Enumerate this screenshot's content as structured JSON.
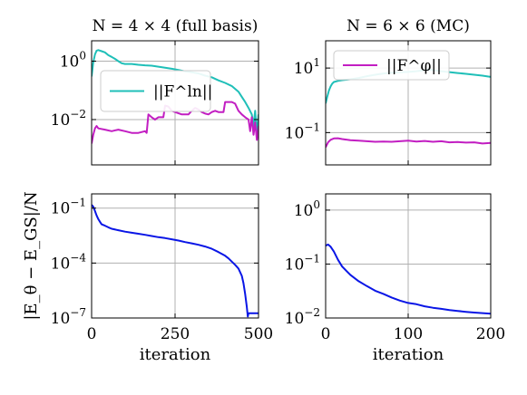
{
  "colors": {
    "cyan": "#1fbfb8",
    "magenta": "#c21ec2",
    "blue": "#0a16e6"
  },
  "chart_data": [
    {
      "panel": "top-left",
      "type": "line",
      "title": "N = 4 × 4 (full basis)",
      "xlim": [
        0,
        500
      ],
      "ylim": [
        0.00028,
        5.0
      ],
      "yscale": "log",
      "yticks": [
        {
          "value": 1,
          "label": "10^0"
        },
        {
          "value": 0.01,
          "label": "10^-2"
        }
      ],
      "xticks": [
        0,
        250,
        500
      ],
      "legend": {
        "placement": "upper-left",
        "entries": [
          "||F^ln||"
        ]
      },
      "series": [
        {
          "name": "||F^ln||",
          "color": "#1fbfb8",
          "points": [
            [
              0,
              0.3
            ],
            [
              5,
              0.9
            ],
            [
              10,
              1.7
            ],
            [
              15,
              2.3
            ],
            [
              20,
              2.4
            ],
            [
              30,
              2.2
            ],
            [
              40,
              2.0
            ],
            [
              50,
              1.6
            ],
            [
              60,
              1.4
            ],
            [
              70,
              1.2
            ],
            [
              80,
              1.0
            ],
            [
              90,
              0.85
            ],
            [
              100,
              0.8
            ],
            [
              120,
              0.8
            ],
            [
              140,
              0.75
            ],
            [
              160,
              0.72
            ],
            [
              180,
              0.7
            ],
            [
              200,
              0.65
            ],
            [
              220,
              0.6
            ],
            [
              240,
              0.55
            ],
            [
              260,
              0.5
            ],
            [
              280,
              0.45
            ],
            [
              300,
              0.42
            ],
            [
              320,
              0.38
            ],
            [
              340,
              0.32
            ],
            [
              360,
              0.28
            ],
            [
              380,
              0.22
            ],
            [
              400,
              0.18
            ],
            [
              420,
              0.14
            ],
            [
              440,
              0.09
            ],
            [
              450,
              0.06
            ],
            [
              460,
              0.04
            ],
            [
              470,
              0.025
            ],
            [
              480,
              0.015
            ],
            [
              485,
              0.006
            ],
            [
              490,
              0.02
            ],
            [
              495,
              0.003
            ],
            [
              500,
              0.015
            ]
          ]
        },
        {
          "name": "",
          "color": "#c21ec2",
          "points": [
            [
              0,
              0.0015
            ],
            [
              5,
              0.003
            ],
            [
              10,
              0.005
            ],
            [
              15,
              0.006
            ],
            [
              20,
              0.005
            ],
            [
              40,
              0.0045
            ],
            [
              60,
              0.004
            ],
            [
              80,
              0.0045
            ],
            [
              100,
              0.004
            ],
            [
              120,
              0.0035
            ],
            [
              140,
              0.0035
            ],
            [
              160,
              0.004
            ],
            [
              165,
              0.0035
            ],
            [
              170,
              0.015
            ],
            [
              180,
              0.012
            ],
            [
              190,
              0.01
            ],
            [
              200,
              0.012
            ],
            [
              215,
              0.012
            ],
            [
              220,
              0.03
            ],
            [
              230,
              0.028
            ],
            [
              240,
              0.02
            ],
            [
              250,
              0.018
            ],
            [
              270,
              0.015
            ],
            [
              290,
              0.015
            ],
            [
              300,
              0.02
            ],
            [
              310,
              0.025
            ],
            [
              320,
              0.022
            ],
            [
              330,
              0.018
            ],
            [
              340,
              0.016
            ],
            [
              350,
              0.015
            ],
            [
              360,
              0.018
            ],
            [
              370,
              0.02
            ],
            [
              380,
              0.018
            ],
            [
              395,
              0.018
            ],
            [
              400,
              0.04
            ],
            [
              420,
              0.04
            ],
            [
              430,
              0.035
            ],
            [
              440,
              0.02
            ],
            [
              450,
              0.015
            ],
            [
              460,
              0.012
            ],
            [
              470,
              0.01
            ],
            [
              475,
              0.004
            ],
            [
              480,
              0.012
            ],
            [
              485,
              0.003
            ],
            [
              490,
              0.008
            ],
            [
              495,
              0.002
            ],
            [
              500,
              0.006
            ]
          ]
        }
      ]
    },
    {
      "panel": "top-right",
      "type": "line",
      "title": "N = 6 × 6 (MC)",
      "xlim": [
        0,
        200
      ],
      "ylim": [
        0.01,
        70
      ],
      "yscale": "log",
      "yticks": [
        {
          "value": 10,
          "label": "10^1"
        },
        {
          "value": 0.1,
          "label": "10^-1"
        }
      ],
      "xticks": [
        0,
        100,
        200
      ],
      "legend": {
        "placement": "upper-left",
        "entries": [
          "||F^φ||"
        ]
      },
      "series": [
        {
          "name": "",
          "color": "#1fbfb8",
          "points": [
            [
              0,
              0.8
            ],
            [
              2,
              1.3
            ],
            [
              4,
              2.0
            ],
            [
              6,
              2.7
            ],
            [
              8,
              3.3
            ],
            [
              10,
              3.7
            ],
            [
              15,
              4.0
            ],
            [
              20,
              4.2
            ],
            [
              30,
              4.5
            ],
            [
              40,
              4.9
            ],
            [
              50,
              5.6
            ],
            [
              60,
              6.2
            ],
            [
              70,
              6.8
            ],
            [
              80,
              7.2
            ],
            [
              90,
              7.4
            ],
            [
              100,
              7.6
            ],
            [
              110,
              8.0
            ],
            [
              120,
              8.6
            ],
            [
              125,
              9.0
            ],
            [
              130,
              8.7
            ],
            [
              140,
              8.0
            ],
            [
              150,
              7.5
            ],
            [
              160,
              7.0
            ],
            [
              170,
              6.6
            ],
            [
              180,
              6.2
            ],
            [
              190,
              5.8
            ],
            [
              200,
              5.3
            ]
          ]
        },
        {
          "name": "||F^φ||",
          "color": "#c21ec2",
          "points": [
            [
              0,
              0.035
            ],
            [
              3,
              0.05
            ],
            [
              6,
              0.06
            ],
            [
              10,
              0.066
            ],
            [
              15,
              0.067
            ],
            [
              20,
              0.063
            ],
            [
              30,
              0.058
            ],
            [
              40,
              0.056
            ],
            [
              50,
              0.054
            ],
            [
              60,
              0.052
            ],
            [
              70,
              0.053
            ],
            [
              80,
              0.052
            ],
            [
              90,
              0.054
            ],
            [
              100,
              0.056
            ],
            [
              110,
              0.053
            ],
            [
              120,
              0.055
            ],
            [
              130,
              0.052
            ],
            [
              140,
              0.054
            ],
            [
              150,
              0.05
            ],
            [
              160,
              0.051
            ],
            [
              170,
              0.049
            ],
            [
              180,
              0.05
            ],
            [
              190,
              0.046
            ],
            [
              200,
              0.048
            ]
          ]
        }
      ]
    },
    {
      "panel": "bottom-left",
      "type": "line",
      "xlabel": "iteration",
      "ylabel": "|E_θ − E_GS|/N",
      "xlim": [
        0,
        500
      ],
      "ylim": [
        1e-07,
        0.6
      ],
      "yscale": "log",
      "yticks": [
        {
          "value": 0.1,
          "label": "10^-1"
        },
        {
          "value": 0.0001,
          "label": "10^-4"
        },
        {
          "value": 1e-07,
          "label": "10^-7"
        }
      ],
      "xticks": [
        0,
        250,
        500
      ],
      "series": [
        {
          "name": "",
          "color": "#0a16e6",
          "points": [
            [
              0,
              0.15
            ],
            [
              5,
              0.12
            ],
            [
              10,
              0.07
            ],
            [
              15,
              0.04
            ],
            [
              20,
              0.025
            ],
            [
              25,
              0.018
            ],
            [
              30,
              0.013
            ],
            [
              40,
              0.011
            ],
            [
              50,
              0.009
            ],
            [
              60,
              0.0075
            ],
            [
              80,
              0.0062
            ],
            [
              100,
              0.0052
            ],
            [
              120,
              0.0045
            ],
            [
              140,
              0.004
            ],
            [
              160,
              0.0035
            ],
            [
              180,
              0.003
            ],
            [
              200,
              0.0026
            ],
            [
              220,
              0.0023
            ],
            [
              240,
              0.002
            ],
            [
              260,
              0.0017
            ],
            [
              280,
              0.0014
            ],
            [
              300,
              0.0012
            ],
            [
              320,
              0.001
            ],
            [
              340,
              0.0008
            ],
            [
              360,
              0.0006
            ],
            [
              380,
              0.0004
            ],
            [
              400,
              0.00025
            ],
            [
              410,
              0.00018
            ],
            [
              420,
              0.00012
            ],
            [
              430,
              8e-05
            ],
            [
              440,
              5e-05
            ],
            [
              450,
              2e-05
            ],
            [
              455,
              8e-06
            ],
            [
              460,
              2e-06
            ],
            [
              465,
              4e-07
            ],
            [
              468,
              1.2e-07
            ],
            [
              470,
              1.8e-07
            ],
            [
              480,
              1.8e-07
            ],
            [
              490,
              1.8e-07
            ],
            [
              500,
              1.8e-07
            ]
          ]
        }
      ]
    },
    {
      "panel": "bottom-right",
      "type": "line",
      "xlabel": "iteration",
      "xlim": [
        0,
        200
      ],
      "ylim": [
        0.01,
        2.0
      ],
      "yscale": "log",
      "yticks": [
        {
          "value": 1,
          "label": "10^0"
        },
        {
          "value": 0.1,
          "label": "10^-1"
        },
        {
          "value": 0.01,
          "label": "10^-2"
        }
      ],
      "xticks": [
        0,
        100,
        200
      ],
      "series": [
        {
          "name": "",
          "color": "#0a16e6",
          "points": [
            [
              0,
              0.22
            ],
            [
              3,
              0.23
            ],
            [
              6,
              0.21
            ],
            [
              10,
              0.17
            ],
            [
              15,
              0.12
            ],
            [
              20,
              0.09
            ],
            [
              25,
              0.075
            ],
            [
              30,
              0.063
            ],
            [
              40,
              0.048
            ],
            [
              50,
              0.039
            ],
            [
              60,
              0.032
            ],
            [
              70,
              0.028
            ],
            [
              80,
              0.024
            ],
            [
              90,
              0.021
            ],
            [
              100,
              0.019
            ],
            [
              110,
              0.018
            ],
            [
              120,
              0.0165
            ],
            [
              130,
              0.0155
            ],
            [
              140,
              0.0148
            ],
            [
              150,
              0.014
            ],
            [
              160,
              0.0135
            ],
            [
              170,
              0.013
            ],
            [
              180,
              0.0126
            ],
            [
              190,
              0.0123
            ],
            [
              200,
              0.012
            ]
          ]
        }
      ]
    }
  ]
}
